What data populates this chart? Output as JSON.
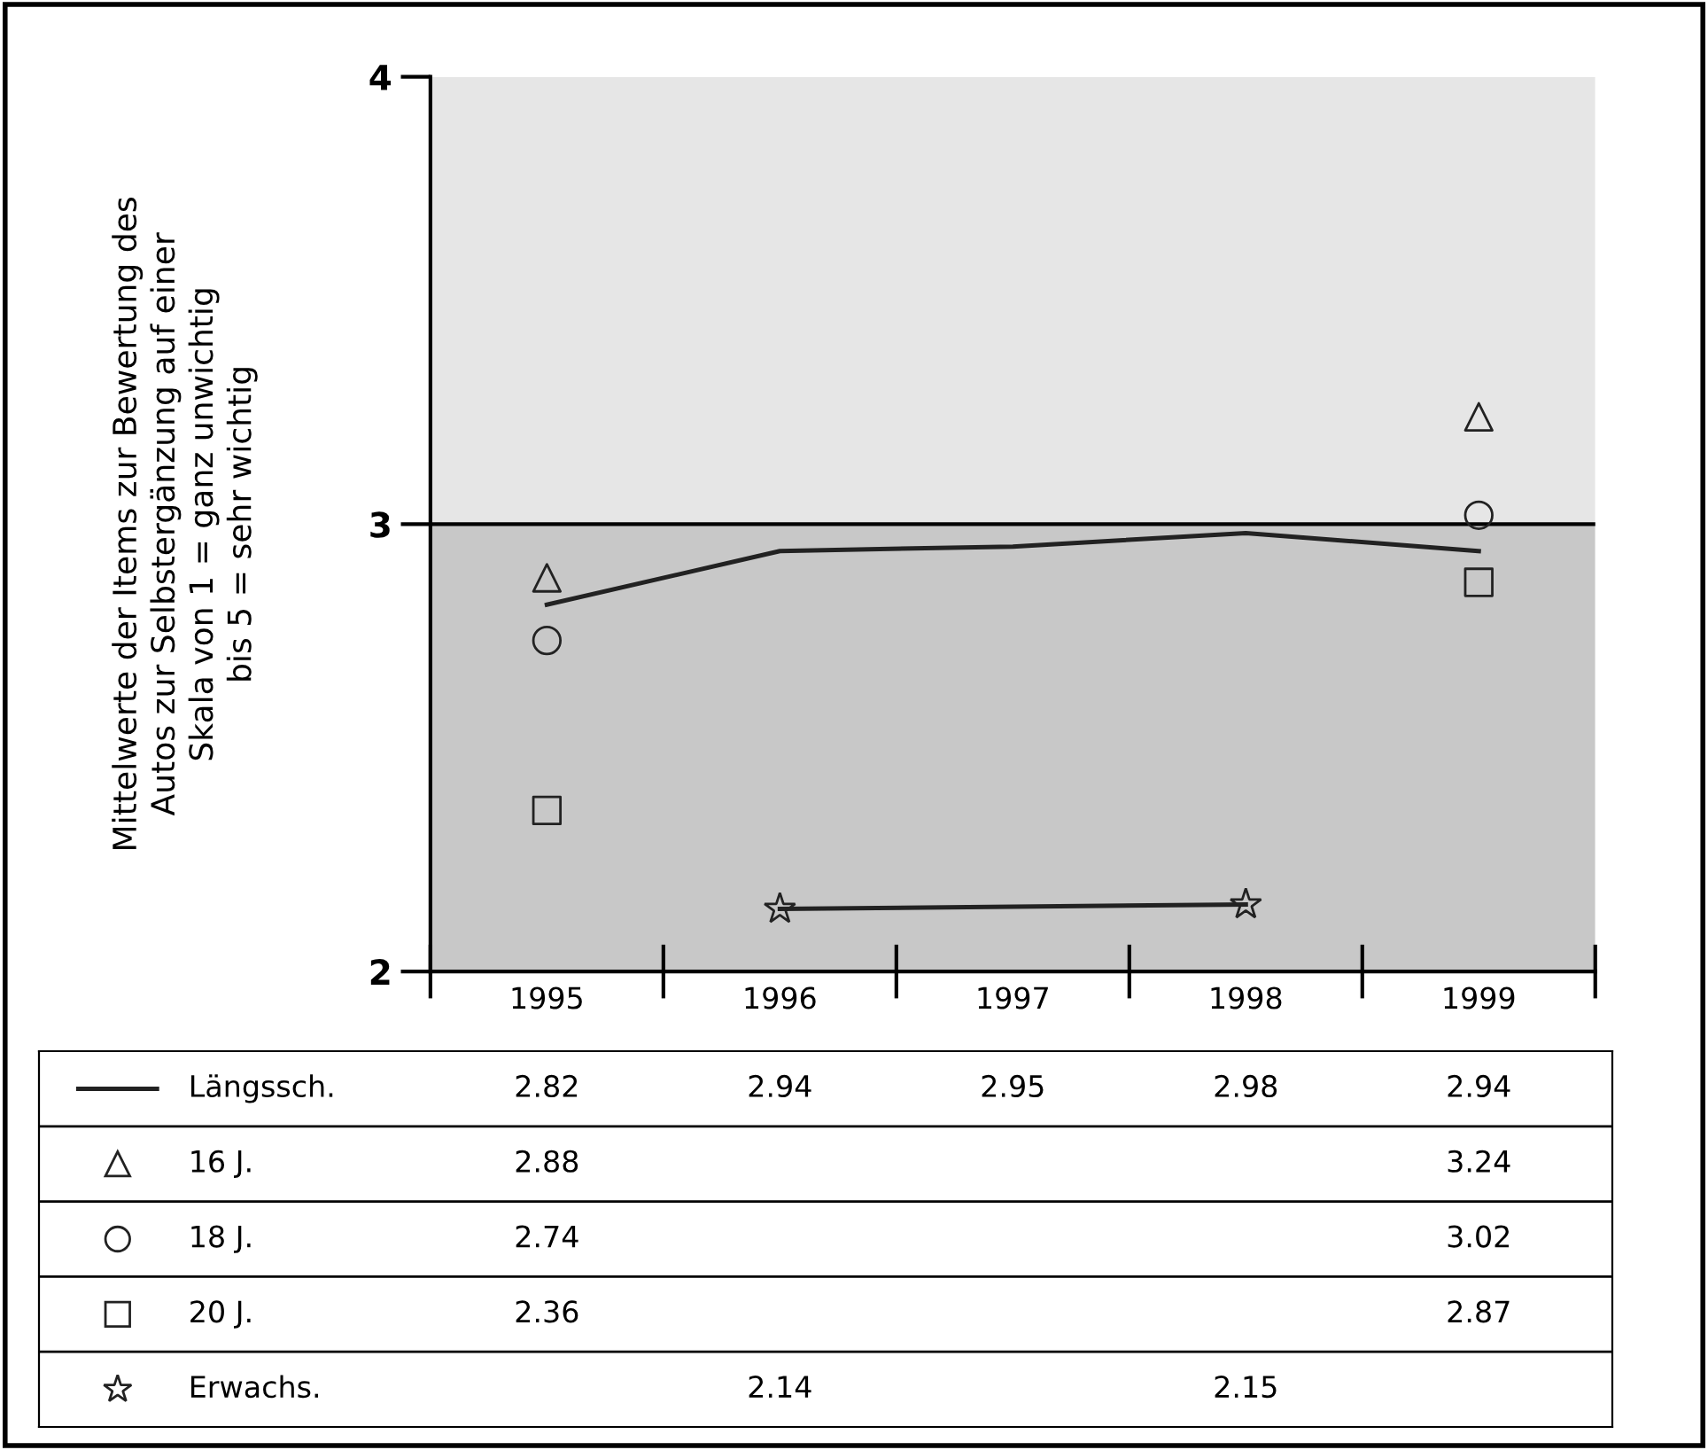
{
  "chart_data": {
    "type": "line",
    "ylabel": "Mittelwerte der Items zur Bewertung des\nAutos zur Selbstergänzung auf einer\nSkala von 1 = ganz unwichtig\nbis 5 = sehr wichtig",
    "categories": [
      "1995",
      "1996",
      "1997",
      "1998",
      "1999"
    ],
    "series": [
      {
        "name": "Längssch.",
        "marker": "none",
        "color": "#222222",
        "values": [
          2.82,
          2.94,
          2.95,
          2.98,
          2.94
        ]
      },
      {
        "name": "16 J.",
        "type": "scatter",
        "marker": "triangle",
        "color": "#222222",
        "values": [
          2.88,
          null,
          null,
          null,
          3.24
        ]
      },
      {
        "name": "18 J.",
        "type": "scatter",
        "marker": "circle",
        "color": "#222222",
        "values": [
          2.74,
          null,
          null,
          null,
          3.02
        ]
      },
      {
        "name": "20 J.",
        "type": "scatter",
        "marker": "square",
        "color": "#222222",
        "values": [
          2.36,
          null,
          null,
          null,
          2.87
        ]
      },
      {
        "name": "Erwachs.",
        "marker": "star",
        "color": "#222222",
        "values": [
          null,
          2.14,
          null,
          2.15,
          null
        ]
      }
    ],
    "ylim": [
      2,
      4
    ],
    "yticks": [
      2,
      3,
      4
    ],
    "bands": [
      {
        "axis": "y",
        "from": 2,
        "to": 3,
        "color": "#c8c8c8"
      },
      {
        "axis": "y",
        "from": 3,
        "to": 4,
        "color": "#e6e6e6"
      }
    ],
    "ref_lines": [
      {
        "axis": "y",
        "value": 3,
        "color": "#000000"
      }
    ],
    "data_labels": true,
    "legend": "bottom",
    "grid": false
  }
}
